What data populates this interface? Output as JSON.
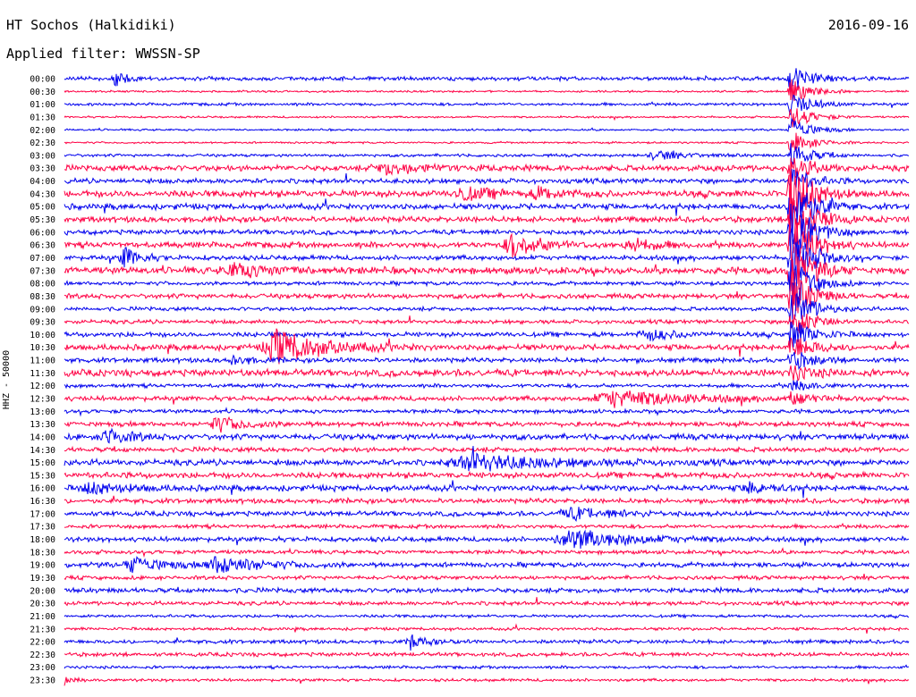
{
  "header": {
    "station": "HT Sochos (Halkidiki)",
    "date": "2016-09-16",
    "filter": "Applied filter: WWSSN-SP"
  },
  "chart_data": {
    "type": "line",
    "title": "HT Sochos (Halkidiki)",
    "ylabel": "HHZ - 50000",
    "xlabel": "",
    "grid": false,
    "colors": [
      "#0000ee",
      "#ff0044"
    ],
    "row_labels": [
      "00:00",
      "00:30",
      "01:00",
      "01:30",
      "02:00",
      "02:30",
      "03:00",
      "03:30",
      "04:00",
      "04:30",
      "05:00",
      "05:30",
      "06:00",
      "06:30",
      "07:00",
      "07:30",
      "08:00",
      "08:30",
      "09:00",
      "09:30",
      "10:00",
      "10:30",
      "11:00",
      "11:30",
      "12:00",
      "12:30",
      "13:00",
      "13:30",
      "14:00",
      "14:30",
      "15:00",
      "15:30",
      "16:00",
      "16:30",
      "17:00",
      "17:30",
      "18:00",
      "18:30",
      "19:00",
      "19:30",
      "20:00",
      "20:30",
      "21:00",
      "21:30",
      "22:00",
      "22:30",
      "23:00",
      "23:30"
    ],
    "row_noise": [
      2,
      1,
      1.5,
      1,
      1,
      1,
      1.5,
      3,
      2.5,
      3.5,
      3,
      3,
      2.5,
      3,
      2.5,
      3.5,
      2,
      2.5,
      2,
      2,
      2.5,
      3,
      2.5,
      3.5,
      2,
      2.5,
      2,
      2.5,
      3,
      2.5,
      3,
      3,
      3,
      2.5,
      2.5,
      2,
      2.5,
      2,
      2.5,
      2,
      2.5,
      2,
      1.5,
      1.5,
      2,
      2,
      1.5,
      1.5
    ],
    "events": [
      {
        "row": 0,
        "t": 0.06,
        "amp": 9,
        "dur": 0.015
      },
      {
        "row": 6,
        "t": 0.7,
        "amp": 5,
        "dur": 0.04
      },
      {
        "row": 7,
        "t": 0.38,
        "amp": 6,
        "dur": 0.06
      },
      {
        "row": 9,
        "t": 0.47,
        "amp": 7,
        "dur": 0.04
      },
      {
        "row": 9,
        "t": 0.56,
        "amp": 6,
        "dur": 0.03
      },
      {
        "row": 13,
        "t": 0.53,
        "amp": 13,
        "dur": 0.04
      },
      {
        "row": 13,
        "t": 0.67,
        "amp": 8,
        "dur": 0.03
      },
      {
        "row": 14,
        "t": 0.07,
        "amp": 12,
        "dur": 0.02
      },
      {
        "row": 15,
        "t": 0.2,
        "amp": 7,
        "dur": 0.06
      },
      {
        "row": 20,
        "t": 0.69,
        "amp": 6,
        "dur": 0.04
      },
      {
        "row": 21,
        "t": 0.25,
        "amp": 20,
        "dur": 0.06
      },
      {
        "row": 22,
        "t": 0.2,
        "amp": 6,
        "dur": 0.02
      },
      {
        "row": 25,
        "t": 0.65,
        "amp": 9,
        "dur": 0.1
      },
      {
        "row": 27,
        "t": 0.18,
        "amp": 8,
        "dur": 0.04
      },
      {
        "row": 28,
        "t": 0.05,
        "amp": 9,
        "dur": 0.03
      },
      {
        "row": 30,
        "t": 0.48,
        "amp": 9,
        "dur": 0.1
      },
      {
        "row": 32,
        "t": 0.03,
        "amp": 6,
        "dur": 0.05
      },
      {
        "row": 32,
        "t": 0.81,
        "amp": 6,
        "dur": 0.03
      },
      {
        "row": 34,
        "t": 0.6,
        "amp": 6,
        "dur": 0.06
      },
      {
        "row": 36,
        "t": 0.6,
        "amp": 10,
        "dur": 0.08
      },
      {
        "row": 38,
        "t": 0.08,
        "amp": 9,
        "dur": 0.04
      },
      {
        "row": 38,
        "t": 0.18,
        "amp": 9,
        "dur": 0.06
      },
      {
        "row": 44,
        "t": 0.41,
        "amp": 8,
        "dur": 0.02
      },
      {
        "row": 47,
        "t": 0.0,
        "amp": 5,
        "dur": 0.01
      }
    ],
    "big_event": {
      "start_row": 0,
      "end_row": 25,
      "t": 0.86,
      "peak_amp": 40
    }
  }
}
